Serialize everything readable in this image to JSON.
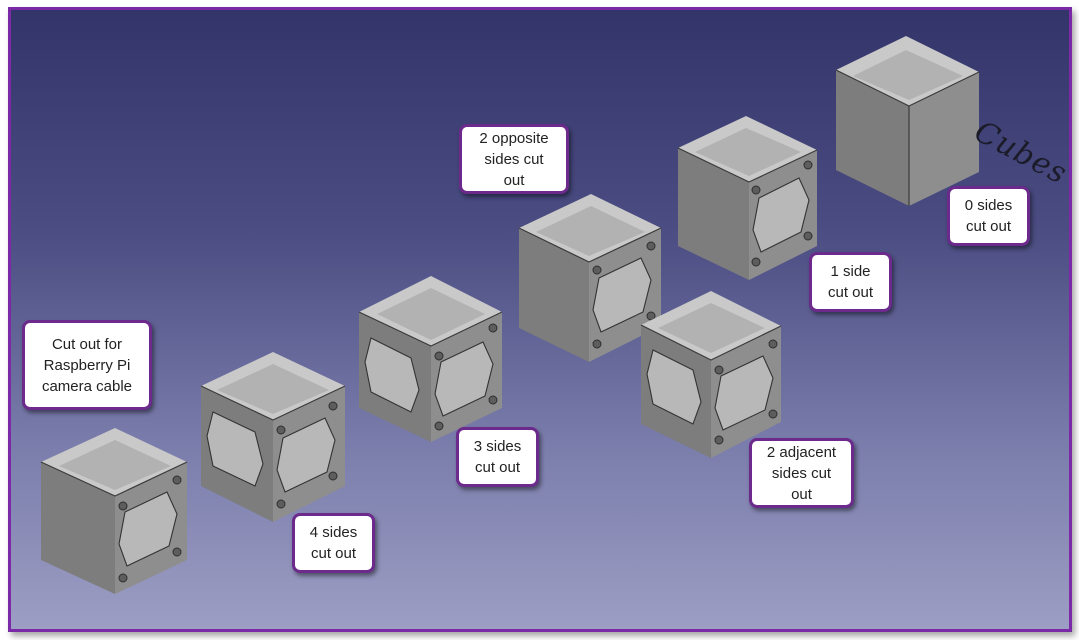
{
  "callouts": {
    "cable": "Cut out for\nRaspberry Pi\ncamera cable",
    "four": "4 sides\ncut out",
    "three": "3 sides\ncut out",
    "opposite": "2 opposite\nsides cut\nout",
    "adjacent": "2 adjacent\nsides cut\nout",
    "one": "1 side\ncut out",
    "zero": "0 sides\ncut out"
  },
  "brand_text": "Cubes",
  "colors": {
    "frame_border": "#7a2aa6",
    "callout_border": "#6b2a8c"
  }
}
